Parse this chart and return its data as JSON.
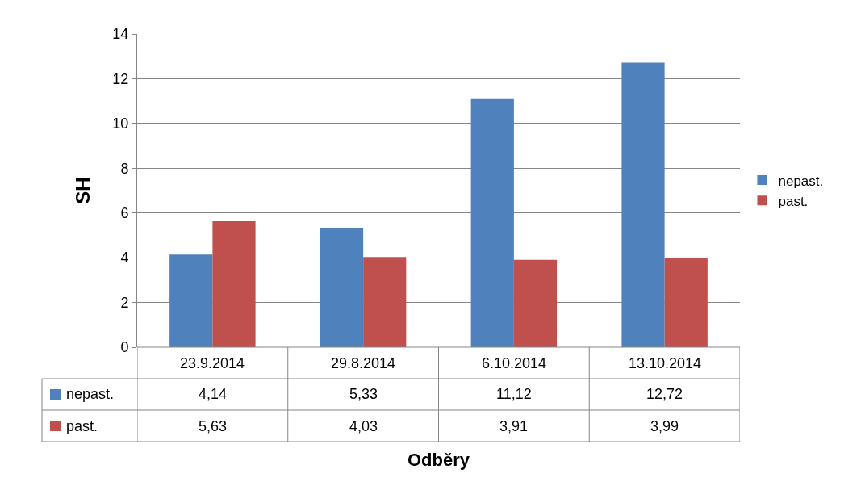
{
  "chart_data": {
    "type": "bar",
    "xlabel": "Odběry",
    "ylabel": "SH",
    "categories": [
      "23.9.2014",
      "29.8.2014",
      "6.10.2014",
      "13.10.2014"
    ],
    "series": [
      {
        "name": "nepast.",
        "color": "#4f81bd",
        "values": [
          4.14,
          5.33,
          11.12,
          12.72
        ],
        "value_labels": [
          "4,14",
          "5,33",
          "11,12",
          "12,72"
        ]
      },
      {
        "name": "past.",
        "color": "#c0504d",
        "values": [
          5.63,
          4.03,
          3.91,
          3.99
        ],
        "value_labels": [
          "5,63",
          "4,03",
          "3,91",
          "3,99"
        ]
      }
    ],
    "ylim": [
      0,
      14
    ],
    "yticks": [
      0,
      2,
      4,
      6,
      8,
      10,
      12,
      14
    ],
    "grid": "y",
    "legend": "right"
  }
}
